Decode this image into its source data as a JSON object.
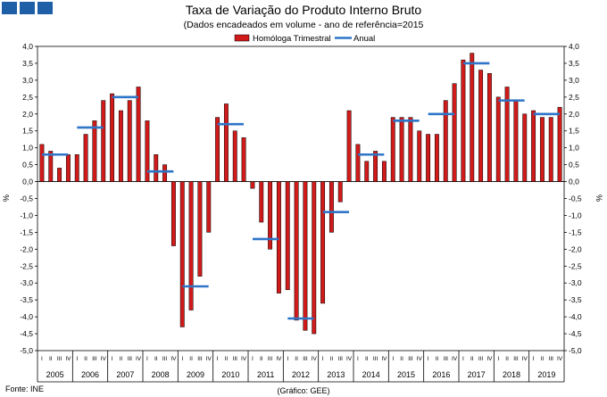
{
  "brand": {
    "color": "#1f5fa8"
  },
  "chart_data": {
    "type": "bar",
    "title": "Taxa de Variação do Produto Interno Bruto",
    "subtitle": "(Dados encadeados em  volume - ano de referência=2015",
    "ylabel_left": "%",
    "ylabel_right": "%",
    "ylim": [
      -5,
      4
    ],
    "yticks": [
      4.0,
      3.5,
      3.0,
      2.5,
      2.0,
      1.5,
      1.0,
      0.5,
      0.0,
      -0.5,
      -1.0,
      -1.5,
      -2.0,
      -2.5,
      -3.0,
      -3.5,
      -4.0,
      -4.5,
      -5.0
    ],
    "ytick_labels_left": [
      "4,0",
      "3,5",
      "3,0",
      "2,5",
      "2,0",
      "1,5",
      "1,0",
      "0,5",
      "0,0",
      "-0,5",
      "-1,0",
      "-1,5",
      "-2,0",
      "-2,5",
      "-3,0",
      "-3,5",
      "-4,0",
      "-4,5",
      "-5,0"
    ],
    "ytick_labels_right": [
      "4,0",
      "3,5",
      "3,0",
      "2,5",
      "2,0",
      "1,5",
      "1,0",
      "0,5",
      "0,0",
      "-0,5",
      "-1,0",
      "-1,5",
      "-2,0",
      "-2,5",
      "-3,0",
      "-3,5",
      "-4,0",
      "-4,5",
      "-5,0"
    ],
    "years": [
      "2005",
      "2006",
      "2007",
      "2008",
      "2009",
      "2010",
      "2011",
      "2012",
      "2013",
      "2014",
      "2015",
      "2016",
      "2017",
      "2018",
      "2019"
    ],
    "quarter_labels": [
      "I",
      "II",
      "III",
      "IV"
    ],
    "legend": {
      "placement": "top-center"
    },
    "series": [
      {
        "name": "Homóloga Trimestral",
        "kind": "bar",
        "color": "#d11a1a",
        "values": [
          1.1,
          0.9,
          0.4,
          0.8,
          0.8,
          1.4,
          1.8,
          2.4,
          2.6,
          2.1,
          2.4,
          2.8,
          1.8,
          0.8,
          0.5,
          -1.9,
          -4.3,
          -3.8,
          -2.8,
          -1.5,
          1.9,
          2.3,
          1.5,
          1.3,
          -0.2,
          -1.2,
          -2.0,
          -3.3,
          -3.2,
          -4.1,
          -4.4,
          -4.5,
          -3.6,
          -1.5,
          -0.6,
          2.1,
          1.1,
          0.6,
          0.9,
          0.6,
          1.9,
          1.9,
          1.9,
          1.5,
          1.4,
          1.4,
          2.4,
          2.9,
          3.6,
          3.8,
          3.3,
          3.2,
          2.5,
          2.8,
          2.4,
          2.0,
          2.1,
          1.9,
          1.9,
          2.2
        ]
      },
      {
        "name": "Anual",
        "kind": "step",
        "color": "#2e75c8",
        "values": [
          0.8,
          1.6,
          2.5,
          0.3,
          -3.1,
          1.7,
          -1.7,
          -4.05,
          -0.9,
          0.8,
          1.8,
          2.0,
          3.5,
          2.4,
          2.0
        ]
      }
    ]
  },
  "footer": {
    "source": "Fonte: INE",
    "credit": "(Gráfico: GEE)"
  }
}
